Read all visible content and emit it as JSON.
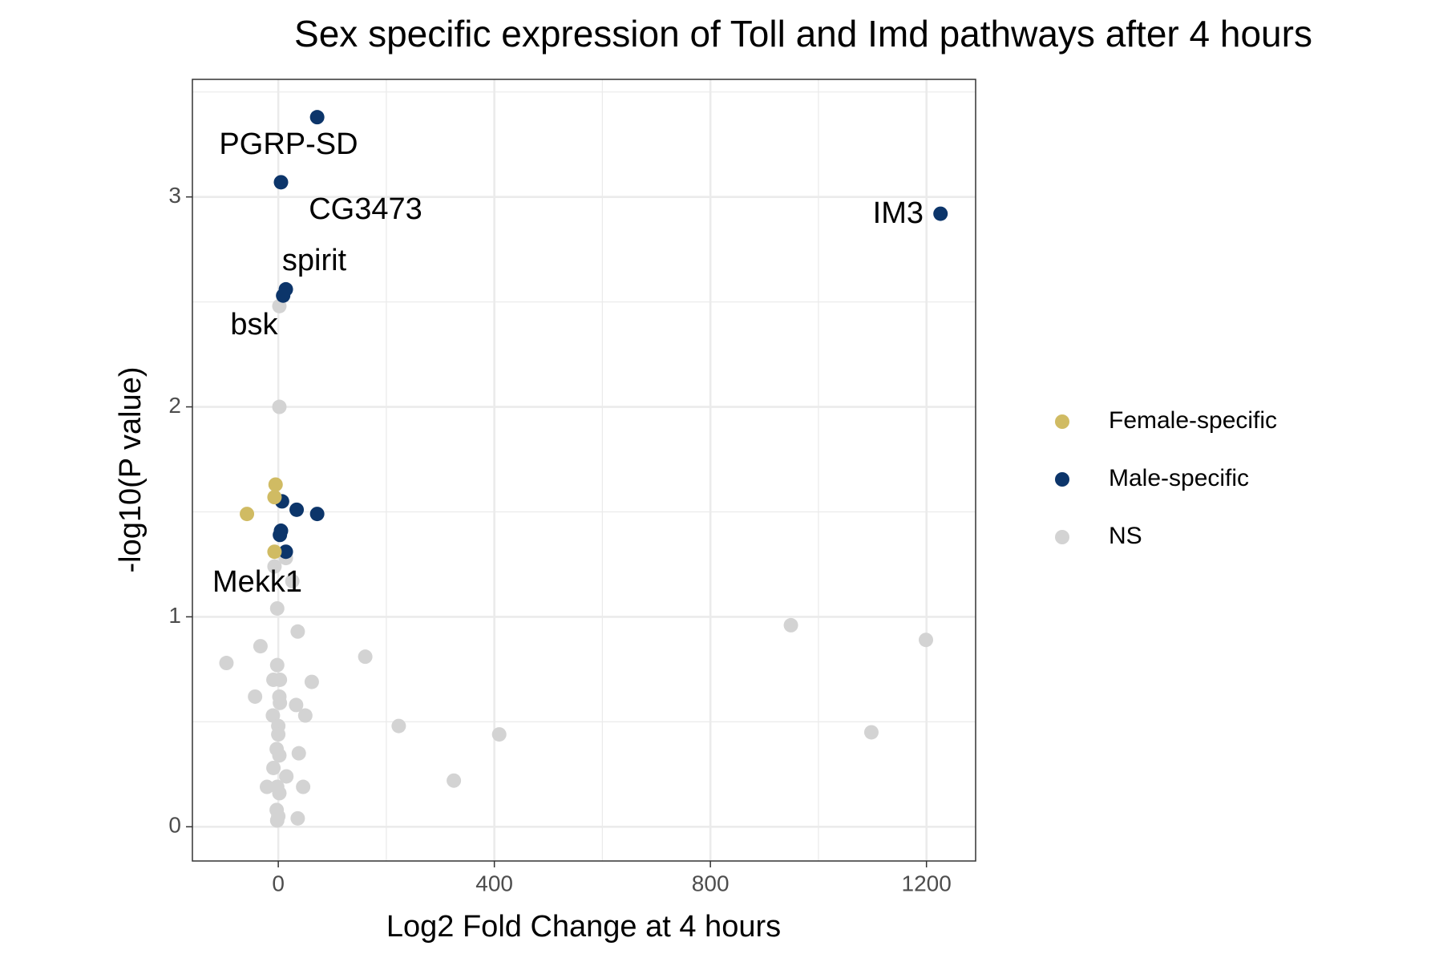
{
  "chart_data": {
    "type": "scatter",
    "title": "Sex specific expression of Toll and Imd pathways after 4 hours",
    "x_label": "Log2 Fold Change at 4 hours",
    "y_label": "-log10(P value)",
    "xlim": [
      -159,
      1291
    ],
    "ylim": [
      -0.163,
      3.56
    ],
    "xticks": [
      0,
      400,
      800,
      1200
    ],
    "yticks": [
      0,
      1,
      2,
      3
    ],
    "grid": true,
    "minor_grid": true,
    "legend_position": "right",
    "series": [
      {
        "name": "Female-specific",
        "color": "#d0bb63",
        "x": [
          -5,
          -7,
          -58,
          -7
        ],
        "values": [
          1.63,
          1.57,
          1.49,
          1.31
        ]
      },
      {
        "name": "Male-specific",
        "color": "#0c356a",
        "x": [
          72,
          5,
          1226,
          14,
          9,
          7,
          34,
          72,
          5,
          3,
          14
        ],
        "values": [
          3.38,
          3.07,
          2.92,
          2.56,
          2.53,
          1.55,
          1.51,
          1.49,
          1.41,
          1.39,
          1.31
        ]
      },
      {
        "name": "NS",
        "color": "#d3d3d3",
        "x": [
          2,
          2,
          14,
          -7,
          26,
          -2,
          36,
          -33,
          -96,
          -2,
          161,
          949,
          1199,
          1098,
          -9,
          3,
          62,
          -43,
          2,
          3,
          33,
          -10,
          50,
          223,
          409,
          0,
          0,
          -3,
          2,
          38,
          -9,
          15,
          -21,
          -2,
          46,
          2,
          325,
          -3,
          0,
          36,
          -2
        ],
        "values": [
          2.48,
          2.0,
          1.28,
          1.24,
          1.17,
          1.04,
          0.93,
          0.86,
          0.78,
          0.77,
          0.81,
          0.96,
          0.89,
          0.45,
          0.7,
          0.7,
          0.69,
          0.62,
          0.62,
          0.59,
          0.58,
          0.53,
          0.53,
          0.48,
          0.44,
          0.48,
          0.44,
          0.37,
          0.34,
          0.35,
          0.28,
          0.24,
          0.19,
          0.19,
          0.19,
          0.16,
          0.22,
          0.08,
          0.05,
          0.04,
          0.03
        ]
      }
    ],
    "annotations": [
      "PGRP-SD",
      "CG3473",
      "IM3",
      "spirit",
      "bsk",
      "Mekk1"
    ]
  }
}
